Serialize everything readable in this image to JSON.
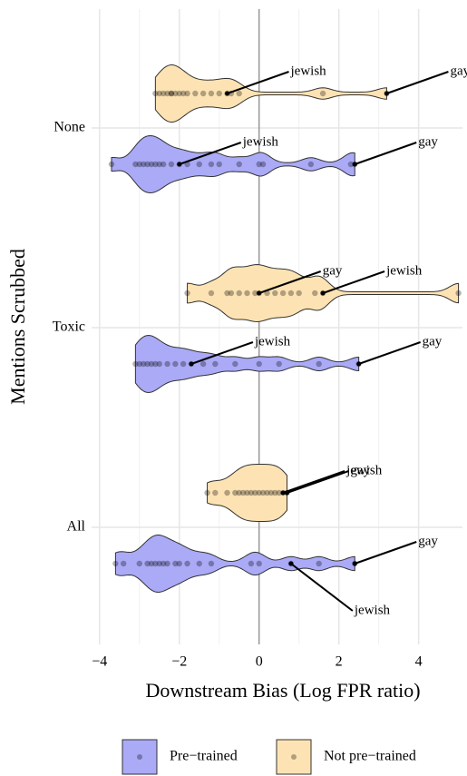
{
  "chart_data": {
    "type": "violin",
    "x_label": "Downstream Bias (Log FPR ratio)",
    "y_label": "Mentions Scrubbed",
    "categories": [
      "None",
      "Toxic",
      "All"
    ],
    "xlim": [
      -4.2,
      5.1
    ],
    "xticks": [
      {
        "value": -4,
        "label": "−4"
      },
      {
        "value": -2,
        "label": "−2"
      },
      0,
      2,
      4
    ],
    "vline": 0,
    "grid": true,
    "legend": "bottom",
    "series": [
      {
        "name": "Pre−trained",
        "color": "#aaaaf7",
        "values": [
          [
            -3.7,
            -3.1,
            -3.0,
            -2.9,
            -2.8,
            -2.7,
            -2.6,
            -2.5,
            -2.4,
            -2.2,
            -2.0,
            -1.8,
            -1.5,
            -1.2,
            -1.0,
            -0.5,
            0.0,
            0.1,
            1.3,
            2.3,
            2.4
          ],
          [
            -3.1,
            -3.0,
            -2.9,
            -2.8,
            -2.7,
            -2.6,
            -2.5,
            -2.3,
            -2.1,
            -1.9,
            -1.7,
            -1.4,
            -1.1,
            -0.6,
            0.0,
            0.5,
            1.5,
            2.5
          ],
          [
            -3.6,
            -3.4,
            -3.0,
            -2.8,
            -2.7,
            -2.6,
            -2.5,
            -2.4,
            -2.3,
            -2.1,
            -2.0,
            -1.8,
            -1.5,
            -1.2,
            -0.2,
            0.0,
            0.8,
            1.5,
            2.4
          ]
        ],
        "annotations": [
          [
            {
              "text": "jewish",
              "x": -2.0
            },
            {
              "text": "gay",
              "x": 2.4
            }
          ],
          [
            {
              "text": "jewish",
              "x": -1.7
            },
            {
              "text": "gay",
              "x": 2.5
            }
          ],
          [
            {
              "text": "gay",
              "x": 2.4
            },
            {
              "text": "jewish",
              "x": 0.8
            }
          ]
        ]
      },
      {
        "name": "Not pre−trained",
        "color": "#fde3b3",
        "values": [
          [
            -2.6,
            -2.5,
            -2.4,
            -2.3,
            -2.2,
            -2.2,
            -2.1,
            -2.0,
            -1.9,
            -1.8,
            -1.6,
            -1.4,
            -1.2,
            -1.0,
            -0.8,
            -0.7,
            -0.5,
            1.6,
            3.2
          ],
          [
            -1.8,
            -1.2,
            -0.8,
            -0.7,
            -0.5,
            -0.3,
            -0.1,
            0.0,
            0.2,
            0.4,
            0.6,
            0.8,
            1.0,
            1.4,
            1.6,
            5.0
          ],
          [
            -1.3,
            -1.1,
            -0.8,
            -0.6,
            -0.5,
            -0.4,
            -0.3,
            -0.2,
            -0.1,
            0.0,
            0.1,
            0.2,
            0.3,
            0.4,
            0.5,
            0.6,
            0.7
          ]
        ],
        "annotations": [
          [
            {
              "text": "jewish",
              "x": -0.8
            },
            {
              "text": "gay",
              "x": 3.2
            }
          ],
          [
            {
              "text": "gay",
              "x": 0.0
            },
            {
              "text": "jewish",
              "x": 1.6
            }
          ],
          [
            {
              "text": "jewish",
              "x": 0.6
            },
            {
              "text": "gay",
              "x": 0.7
            }
          ]
        ]
      }
    ]
  }
}
